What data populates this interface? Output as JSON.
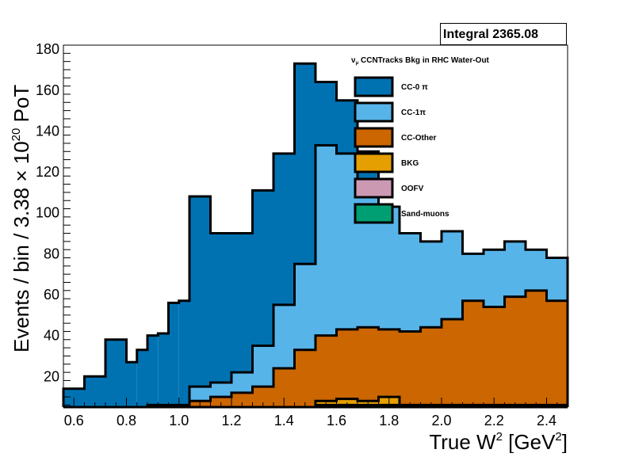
{
  "stats": {
    "label": "Integral 2365.08"
  },
  "chart_data": {
    "type": "area",
    "title": "ν_μ CCNTracks Bkg in RHC Water-Out",
    "title_parts": {
      "main": "ν",
      "sub": "μ",
      "rest": " CCNTracks Bkg in RHC Water-Out"
    },
    "xlabel": "True W² [GeV²]",
    "xlabel_parts": {
      "a": "True W",
      "sup1": "2",
      "b": " [GeV",
      "sup2": "2",
      "c": "]"
    },
    "ylabel": "Events / bin / 3.38 × 10²⁰ PoT",
    "ylabel_parts": {
      "a": "Events / bin / 3.38 × 10",
      "sup": "20",
      "b": " PoT"
    },
    "xlim": [
      0.56,
      2.48
    ],
    "ylim": [
      5,
      182
    ],
    "x_ticks": [
      "0.6",
      "0.8",
      "1.0",
      "1.2",
      "1.4",
      "1.6",
      "1.8",
      "2.0",
      "2.2",
      "2.4"
    ],
    "y_ticks": [
      "20",
      "40",
      "60",
      "80",
      "100",
      "120",
      "140",
      "160",
      "180"
    ],
    "x_edges": [
      0.56,
      0.64,
      0.72,
      0.8,
      0.84,
      0.88,
      0.92,
      0.96,
      1.0,
      1.04,
      1.12,
      1.2,
      1.28,
      1.36,
      1.44,
      1.52,
      1.6,
      1.68,
      1.76,
      1.84,
      1.92,
      2.0,
      2.08,
      2.16,
      2.24,
      2.32,
      2.4,
      2.48
    ],
    "stack_order": "top-down",
    "series": [
      {
        "name": "CC-0 π",
        "color": "#0072b2",
        "values": [
          14,
          20,
          38,
          27,
          33,
          40,
          41,
          56,
          57,
          108,
          90,
          90,
          111,
          129,
          173,
          164,
          155,
          130,
          96,
          88,
          85,
          88,
          78,
          80,
          78,
          72,
          68
        ]
      },
      {
        "name": "CC-1π",
        "color": "#56b4e9",
        "values": [
          0,
          0,
          0,
          0,
          0,
          0,
          0,
          0,
          0,
          0,
          0,
          0,
          0,
          0,
          0,
          0,
          0,
          0,
          0,
          0,
          0,
          0,
          0,
          0,
          0,
          0,
          0
        ]
      },
      {
        "name": "CC-Other",
        "color": "#cc6600",
        "values": [
          0,
          0,
          0,
          0,
          0,
          0,
          0,
          0,
          0,
          0,
          0,
          0,
          0,
          0,
          0,
          0,
          0,
          0,
          0,
          0,
          0,
          0,
          0,
          0,
          0,
          0,
          0
        ]
      },
      {
        "name": "BKG",
        "color": "#e69f00",
        "values": [
          0,
          0,
          0,
          0,
          0,
          0,
          0,
          0,
          0,
          0,
          0,
          0,
          0,
          0,
          0,
          0,
          0,
          0,
          0,
          0,
          0,
          0,
          0,
          0,
          0,
          0,
          0
        ]
      },
      {
        "name": "OOFV",
        "color": "#cc99b3",
        "values": [
          0,
          0,
          0,
          0,
          0,
          0,
          0,
          0,
          0,
          0,
          0,
          0,
          0,
          0,
          0,
          0,
          0,
          0,
          0,
          0,
          0,
          0,
          0,
          0,
          0,
          0,
          0
        ]
      },
      {
        "name": "Sand-muons",
        "color": "#009e73",
        "values": [
          0,
          0,
          0,
          0,
          0,
          0,
          0,
          0,
          0,
          0,
          0,
          0,
          0,
          0,
          0,
          0,
          0,
          0,
          0,
          0,
          0,
          0,
          0,
          0,
          0,
          0,
          0
        ]
      }
    ],
    "stack_cumulative": {
      "CC-0 π": [
        14,
        20,
        38,
        27,
        33,
        40,
        41,
        56,
        57,
        108,
        90,
        90,
        111,
        129,
        173,
        164,
        155,
        130,
        96,
        88,
        85,
        88,
        78,
        80,
        78,
        72,
        68
      ],
      "CC-1π": [
        3,
        5,
        5,
        5,
        5,
        6,
        6,
        6,
        6,
        15,
        17,
        22,
        35,
        55,
        75,
        133,
        129,
        110,
        103,
        90,
        86,
        91,
        80,
        82,
        86,
        82,
        78
      ],
      "CC-Other": [
        3,
        3,
        3,
        3,
        4,
        4,
        4,
        5,
        5,
        8,
        10,
        12,
        15,
        24,
        33,
        40,
        43,
        44,
        43,
        42,
        44,
        48,
        57,
        54,
        59,
        62,
        57
      ],
      "BKG": [
        0,
        0,
        0,
        0,
        0,
        0,
        0,
        0,
        0,
        0,
        0,
        0,
        0,
        0,
        0,
        8,
        9,
        8,
        10,
        6,
        6,
        6,
        6,
        6,
        6,
        6,
        6
      ],
      "OOFV": [
        0,
        0,
        0,
        0,
        0,
        0,
        0,
        0,
        0,
        0,
        0,
        0,
        0,
        0,
        0,
        6,
        6,
        6,
        6,
        5,
        5,
        5,
        5,
        5,
        5,
        5,
        5
      ],
      "Sand-muons": [
        0,
        0,
        0,
        0,
        0,
        0,
        0,
        0,
        0,
        0,
        0,
        0,
        0,
        0,
        0,
        5,
        5,
        5,
        5,
        5,
        5,
        5,
        5,
        5,
        5,
        5,
        5
      ]
    },
    "grid": false,
    "legend_position": "top-center"
  }
}
